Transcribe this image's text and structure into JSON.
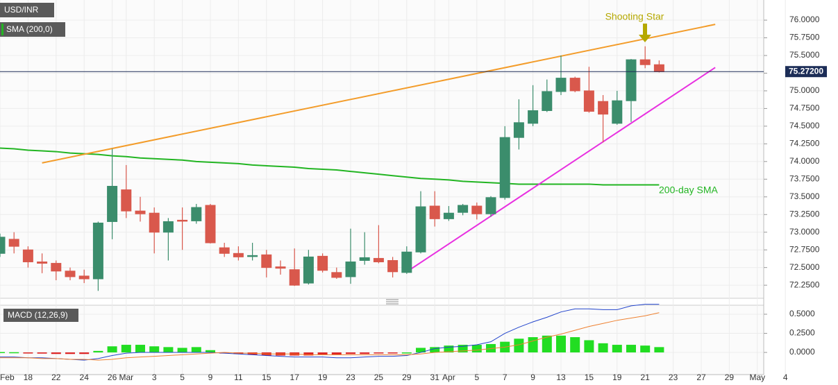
{
  "chart_data": [
    {
      "type": "candlestick",
      "title": "USD/INR",
      "categories": [
        "Feb",
        null,
        "18",
        null,
        "22",
        null,
        "24",
        null,
        "26",
        "Mar",
        null,
        "3",
        null,
        "5",
        null,
        "9",
        null,
        "11",
        null,
        "15",
        null,
        "17",
        null,
        "19",
        null,
        "23",
        null,
        "25",
        null,
        "29",
        null,
        "31",
        "Apr",
        null,
        "5",
        null,
        "7",
        null,
        "9",
        null,
        "13",
        null,
        "15",
        null,
        "19",
        null,
        "21",
        null,
        "23",
        null,
        "27",
        null,
        "29",
        null,
        "May",
        null,
        "4"
      ],
      "open": [
        72.7,
        72.9,
        72.75,
        72.58,
        72.56,
        72.45,
        72.38,
        72.34,
        73.15,
        73.6,
        73.3,
        73.27,
        73.0,
        73.17,
        73.16,
        73.38,
        72.78,
        72.7,
        72.66,
        72.68,
        72.51,
        72.47,
        72.28,
        72.66,
        72.43,
        72.37,
        72.6,
        72.63,
        72.6,
        72.43,
        72.72,
        73.37,
        73.19,
        73.28,
        73.37,
        73.26,
        73.49,
        74.34,
        74.54,
        74.72,
        74.99,
        75.18,
        75.0,
        74.85,
        74.54,
        74.86,
        75.44,
        75.37,
        null,
        null,
        null,
        null,
        null,
        null,
        null,
        null,
        null
      ],
      "high": [
        72.98,
        73.0,
        72.8,
        72.7,
        72.6,
        72.5,
        72.47,
        73.15,
        74.18,
        73.95,
        73.5,
        73.35,
        73.2,
        73.35,
        73.4,
        73.4,
        72.85,
        72.8,
        72.85,
        72.75,
        72.6,
        72.77,
        72.75,
        72.7,
        72.5,
        73.05,
        73.0,
        73.1,
        72.65,
        72.8,
        73.58,
        73.58,
        73.37,
        73.4,
        73.42,
        73.51,
        74.5,
        74.88,
        75.08,
        75.16,
        75.5,
        75.2,
        75.34,
        74.94,
        75.0,
        75.45,
        75.63,
        75.43,
        null,
        null,
        null,
        null,
        null,
        null,
        null,
        null,
        null
      ],
      "low": [
        72.65,
        72.7,
        72.5,
        72.42,
        72.32,
        72.32,
        72.28,
        72.17,
        72.9,
        73.2,
        73.15,
        72.7,
        72.6,
        72.75,
        73.12,
        72.84,
        72.65,
        72.6,
        72.6,
        72.36,
        72.4,
        72.24,
        72.26,
        72.43,
        72.34,
        72.27,
        72.54,
        72.56,
        72.36,
        72.41,
        72.7,
        73.08,
        73.16,
        73.24,
        73.18,
        73.22,
        73.46,
        74.17,
        74.5,
        74.7,
        74.94,
        74.98,
        74.69,
        74.27,
        74.52,
        74.56,
        75.32,
        75.26,
        null,
        null,
        null,
        null,
        null,
        null,
        null,
        null,
        null
      ],
      "close": [
        72.93,
        72.8,
        72.58,
        72.56,
        72.45,
        72.37,
        72.34,
        73.13,
        73.65,
        73.3,
        73.26,
        73.0,
        73.15,
        73.16,
        73.35,
        72.85,
        72.7,
        72.65,
        72.67,
        72.5,
        72.49,
        72.25,
        72.65,
        72.46,
        72.36,
        72.58,
        72.64,
        72.58,
        72.44,
        72.72,
        73.36,
        73.19,
        73.27,
        73.38,
        73.26,
        73.49,
        74.34,
        74.55,
        74.72,
        74.99,
        75.18,
        75.0,
        74.71,
        74.67,
        74.86,
        75.44,
        75.37,
        75.27,
        null,
        null,
        null,
        null,
        null,
        null,
        null,
        null,
        null
      ],
      "up_color": "#3b8d6c",
      "down_color": "#d9584c",
      "ylim": [
        72.065,
        76.285
      ],
      "yticks": [
        {
          "value": 72.25,
          "label": "72.2500"
        },
        {
          "value": 72.5,
          "label": "72.5000"
        },
        {
          "value": 72.75,
          "label": "72.7500"
        },
        {
          "value": 73.0,
          "label": "73.0000"
        },
        {
          "value": 73.25,
          "label": "73.2500"
        },
        {
          "value": 73.5,
          "label": "73.5000"
        },
        {
          "value": 73.75,
          "label": "73.7500"
        },
        {
          "value": 74.0,
          "label": "74.0000"
        },
        {
          "value": 74.25,
          "label": "74.2500"
        },
        {
          "value": 74.5,
          "label": "74.5000"
        },
        {
          "value": 74.75,
          "label": "74.7500"
        },
        {
          "value": 75.0,
          "label": "75.0000"
        },
        {
          "value": 75.25,
          "label": "75.2500"
        },
        {
          "value": 75.5,
          "label": "75.5000"
        },
        {
          "value": 75.75,
          "label": "75.7500"
        },
        {
          "value": 76.0,
          "label": "76.0000"
        }
      ],
      "grid": true,
      "series": [
        {
          "name": "SMA (200,0)",
          "color": "#22b522",
          "values": [
            74.19,
            74.18,
            74.16,
            74.15,
            74.14,
            74.12,
            74.11,
            74.1,
            74.08,
            74.07,
            74.05,
            74.04,
            74.03,
            74.02,
            74.0,
            73.99,
            73.98,
            73.97,
            73.95,
            73.94,
            73.93,
            73.92,
            73.9,
            73.89,
            73.88,
            73.86,
            73.84,
            73.82,
            73.8,
            73.78,
            73.76,
            73.75,
            73.74,
            73.72,
            73.71,
            73.7,
            73.69,
            73.68,
            73.68,
            73.68,
            73.68,
            73.68,
            73.68,
            73.67,
            73.67,
            73.67,
            73.67,
            73.67,
            null,
            null,
            null,
            null,
            null,
            null,
            null,
            null,
            null
          ]
        }
      ],
      "trendlines": [
        {
          "color": "#f39c2a",
          "x": [
            3,
            51
          ],
          "y": [
            73.98,
            75.94
          ]
        },
        {
          "color": "#e830e0",
          "x": [
            29,
            51
          ],
          "y": [
            72.44,
            75.33
          ]
        }
      ],
      "last_price": {
        "value": 75.272,
        "label": "75.27200",
        "color": "#1c2d57"
      },
      "annotations": [
        {
          "text": "Shooting Star",
          "color": "#b5a800"
        },
        {
          "text": "200-day SMA",
          "color": "#22b522"
        }
      ]
    },
    {
      "type": "macd",
      "title": "MACD (12,26,9)",
      "ylim": [
        -0.29,
        0.618
      ],
      "yticks": [
        {
          "value": 0.0,
          "label": "0.0000"
        },
        {
          "value": 0.25,
          "label": "0.2500"
        },
        {
          "value": 0.5,
          "label": "0.5000"
        }
      ],
      "histogram": {
        "pos_color": "#22dd22",
        "neg_color": "#dd2222",
        "values": [
          0.005,
          0.003,
          -0.01,
          -0.015,
          -0.02,
          -0.02,
          -0.02,
          0.02,
          0.08,
          0.1,
          0.1,
          0.08,
          0.07,
          0.06,
          0.07,
          0.03,
          -0.01,
          -0.02,
          -0.03,
          -0.04,
          -0.04,
          -0.04,
          -0.04,
          -0.03,
          -0.03,
          -0.02,
          -0.02,
          -0.01,
          -0.01,
          0.0,
          0.06,
          0.07,
          0.09,
          0.1,
          0.1,
          0.11,
          0.14,
          0.18,
          0.2,
          0.22,
          0.22,
          0.2,
          0.16,
          0.12,
          0.1,
          0.1,
          0.09,
          0.07,
          null,
          null,
          null,
          null,
          null,
          null,
          null,
          null,
          null
        ]
      },
      "lines": [
        {
          "color": "#2244cc",
          "values": [
            -0.06,
            -0.06,
            -0.07,
            -0.07,
            -0.08,
            -0.09,
            -0.1,
            -0.08,
            -0.04,
            -0.01,
            0.0,
            0.0,
            0.0,
            0.0,
            0.0,
            0.0,
            -0.01,
            -0.02,
            -0.03,
            -0.04,
            -0.05,
            -0.06,
            -0.06,
            -0.06,
            -0.07,
            -0.07,
            -0.06,
            -0.05,
            -0.05,
            -0.04,
            0.0,
            0.05,
            0.07,
            0.08,
            0.1,
            0.14,
            0.25,
            0.33,
            0.4,
            0.46,
            0.53,
            0.57,
            0.57,
            0.56,
            0.56,
            0.61,
            0.63,
            0.63,
            null,
            null,
            null,
            null,
            null,
            null,
            null,
            null,
            null
          ]
        },
        {
          "color": "#ee8030",
          "values": [
            -0.07,
            -0.07,
            -0.07,
            -0.08,
            -0.08,
            -0.09,
            -0.09,
            -0.1,
            -0.09,
            -0.07,
            -0.06,
            -0.05,
            -0.04,
            -0.03,
            -0.02,
            -0.01,
            0.0,
            -0.01,
            -0.01,
            -0.02,
            -0.02,
            -0.02,
            -0.03,
            -0.03,
            -0.03,
            -0.03,
            -0.03,
            -0.03,
            -0.03,
            -0.03,
            -0.02,
            0.0,
            0.01,
            0.02,
            0.03,
            0.05,
            0.07,
            0.1,
            0.15,
            0.2,
            0.24,
            0.29,
            0.34,
            0.38,
            0.42,
            0.45,
            0.48,
            0.52,
            null,
            null,
            null,
            null,
            null,
            null,
            null,
            null,
            null
          ]
        }
      ]
    }
  ]
}
